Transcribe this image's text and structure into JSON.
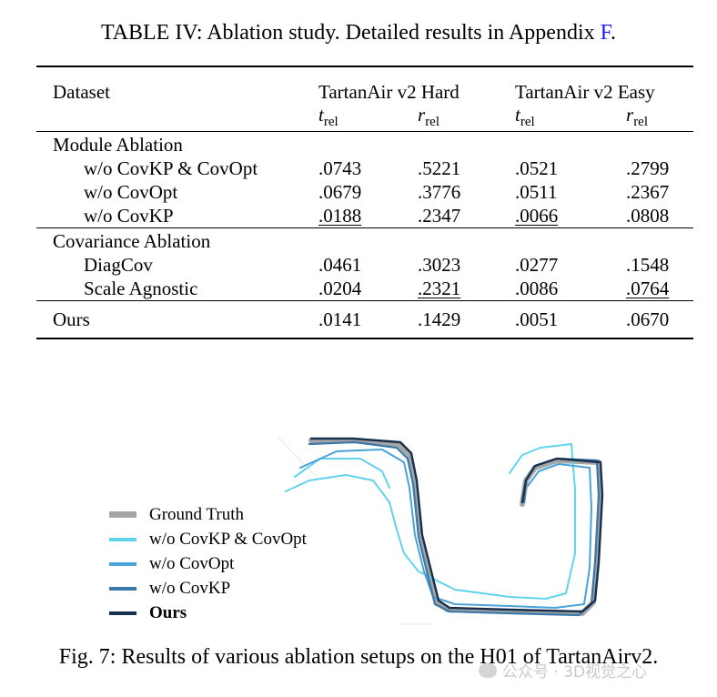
{
  "table_caption": {
    "prefix": "TABLE IV: Ablation study. Detailed results in Appendix ",
    "ref": "F",
    "suffix": "."
  },
  "table": {
    "header": {
      "dataset": "Dataset",
      "groups": [
        "TartanAir v2 Hard",
        "TartanAir v2 Easy"
      ],
      "metrics": [
        {
          "symbol": "t",
          "sub": "rel"
        },
        {
          "symbol": "r",
          "sub": "rel"
        },
        {
          "symbol": "t",
          "sub": "rel"
        },
        {
          "symbol": "r",
          "sub": "rel"
        }
      ]
    },
    "sections": [
      {
        "title": "Module Ablation",
        "rows": [
          {
            "name": "w/o CovKP & CovOpt",
            "values": [
              ".0743",
              ".5221",
              ".0521",
              ".2799"
            ]
          },
          {
            "name": "w/o CovOpt",
            "values": [
              ".0679",
              ".3776",
              ".0511",
              ".2367"
            ]
          },
          {
            "name": "w/o CovKP",
            "values": [
              ".0188",
              ".2347",
              ".0066",
              ".0808"
            ]
          }
        ]
      },
      {
        "title": "Covariance Ablation",
        "rows": [
          {
            "name": "DiagCov",
            "values": [
              ".0461",
              ".3023",
              ".0277",
              ".1548"
            ]
          },
          {
            "name": "Scale Agnostic",
            "values": [
              ".0204",
              ".2321",
              ".0086",
              ".0764"
            ]
          }
        ]
      }
    ],
    "ours": {
      "name": "Ours",
      "values": [
        ".0141",
        ".1429",
        ".0051",
        ".0670"
      ]
    }
  },
  "legend": [
    {
      "label": "Ground Truth",
      "color": "#a6a6a6"
    },
    {
      "label": "w/o CovKP & CovOpt",
      "color": "#62d3ee"
    },
    {
      "label": "w/o CovOpt",
      "color": "#4aa3d8"
    },
    {
      "label": "w/o CovKP",
      "color": "#3a78a8"
    },
    {
      "label": "Ours",
      "color": "#17304d"
    }
  ],
  "figure_caption": "Fig. 7: Results of various ablation setups on the H01 of TartanAirv2.",
  "watermark": "公众号 · 3D视觉之心"
}
